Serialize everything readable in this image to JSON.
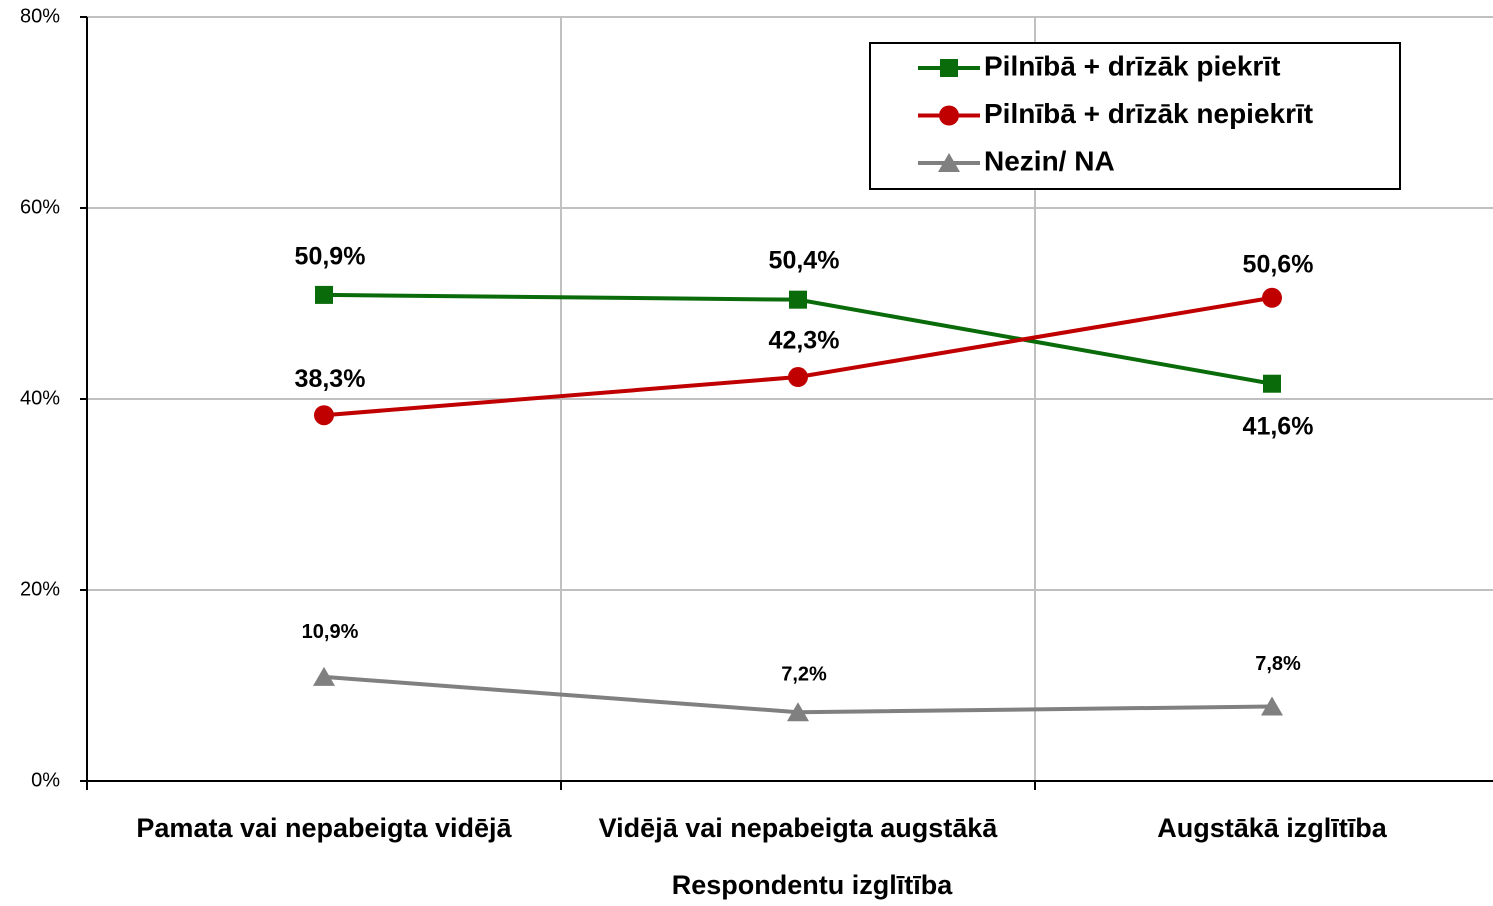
{
  "chart_data": {
    "type": "line",
    "x_label": "Respondentu izglītība",
    "categories": [
      "Pamata vai  nepabeigta vidējā",
      "Vidējā vai  nepabeigta augstākā",
      "Augstākā izglītība"
    ],
    "series": [
      {
        "name": "Pilnībā + drīzāk piekrīt",
        "color": "#0a6b0a",
        "marker": "square",
        "values": [
          50.9,
          50.4,
          41.6
        ],
        "value_labels": [
          "50,9%",
          "50,4%",
          "41,6%"
        ]
      },
      {
        "name": "Pilnībā + drīzāk nepiekrīt",
        "color": "#c00000",
        "marker": "circle",
        "values": [
          38.3,
          42.3,
          50.6
        ],
        "value_labels": [
          "38,3%",
          "42,3%",
          "50,6%"
        ]
      },
      {
        "name": "Nezin/ NA",
        "color": "#808080",
        "marker": "triangle",
        "values": [
          10.9,
          7.2,
          7.8
        ],
        "value_labels": [
          "10,9%",
          "7,2%",
          "7,8%"
        ]
      }
    ],
    "ylim": [
      0,
      80
    ],
    "yticks": [
      {
        "value": 0,
        "label": "0%"
      },
      {
        "value": 20,
        "label": "20%"
      },
      {
        "value": 40,
        "label": "40%"
      },
      {
        "value": 60,
        "label": "60%"
      },
      {
        "value": 80,
        "label": "80%"
      }
    ],
    "grid": true,
    "legend": "upper right"
  }
}
